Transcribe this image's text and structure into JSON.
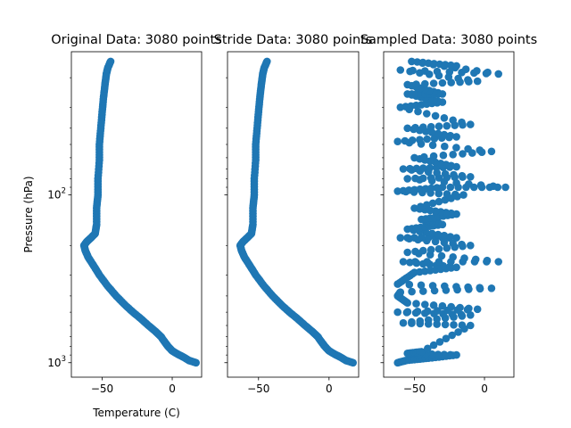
{
  "figure": {
    "marker_color": "#1f77b4",
    "shared_y": true,
    "ylabel": "Pressure (hPa)",
    "xlabel": "Temperature (C)"
  },
  "chart_data": [
    {
      "type": "scatter",
      "title": "Original Data: 3080 points",
      "xlabel": "Temperature (C)",
      "ylabel": "Pressure (hPa)",
      "xlim": [
        -72,
        21
      ],
      "ylim": [
        1220,
        14
      ],
      "yscale": "log",
      "x_ticks": [
        -50,
        0
      ],
      "y_ticks": [
        {
          "value": 100,
          "base": "10",
          "exp": "2"
        },
        {
          "value": 1000,
          "base": "10",
          "exp": "3"
        }
      ],
      "grid": false,
      "legend": "none",
      "series": [
        {
          "points": [
            [
              17,
              1000
            ],
            [
              12,
              970
            ],
            [
              8,
              925
            ],
            [
              4,
              890
            ],
            [
              0,
              850
            ],
            [
              -3,
              800
            ],
            [
              -5,
              760
            ],
            [
              -8,
              700
            ],
            [
              -12,
              650
            ],
            [
              -17,
              600
            ],
            [
              -22,
              550
            ],
            [
              -28,
              500
            ],
            [
              -34,
              450
            ],
            [
              -40,
              400
            ],
            [
              -46,
              350
            ],
            [
              -52,
              300
            ],
            [
              -56,
              265
            ],
            [
              -60,
              235
            ],
            [
              -62,
              215
            ],
            [
              -63,
              200
            ],
            [
              -61,
              190
            ],
            [
              -58,
              180
            ],
            [
              -55,
              170
            ],
            [
              -54,
              150
            ],
            [
              -54,
              120
            ],
            [
              -53,
              100
            ],
            [
              -53,
              80
            ],
            [
              -52,
              62
            ],
            [
              -52,
              50
            ],
            [
              -51,
              40
            ],
            [
              -50,
              32
            ],
            [
              -49,
              26
            ],
            [
              -48,
              22
            ],
            [
              -47,
              19
            ],
            [
              -46,
              17.5
            ],
            [
              -44,
              16
            ]
          ]
        }
      ]
    },
    {
      "type": "scatter",
      "title": "Stride Data: 3080 points",
      "xlim": [
        -72,
        21
      ],
      "ylim": [
        1220,
        14
      ],
      "yscale": "log",
      "x_ticks": [
        -50,
        0
      ],
      "grid": false,
      "legend": "none",
      "series": [
        {
          "points": [
            [
              17,
              1000
            ],
            [
              12,
              970
            ],
            [
              8,
              925
            ],
            [
              4,
              890
            ],
            [
              0,
              850
            ],
            [
              -3,
              800
            ],
            [
              -5,
              760
            ],
            [
              -8,
              700
            ],
            [
              -12,
              650
            ],
            [
              -17,
              600
            ],
            [
              -22,
              550
            ],
            [
              -28,
              500
            ],
            [
              -34,
              450
            ],
            [
              -40,
              400
            ],
            [
              -46,
              350
            ],
            [
              -52,
              300
            ],
            [
              -56,
              265
            ],
            [
              -60,
              235
            ],
            [
              -62,
              215
            ],
            [
              -63,
              200
            ],
            [
              -61,
              190
            ],
            [
              -58,
              180
            ],
            [
              -55,
              170
            ],
            [
              -54,
              150
            ],
            [
              -54,
              120
            ],
            [
              -53,
              100
            ],
            [
              -53,
              80
            ],
            [
              -52,
              62
            ],
            [
              -52,
              50
            ],
            [
              -51,
              40
            ],
            [
              -50,
              32
            ],
            [
              -49,
              26
            ],
            [
              -48,
              22
            ],
            [
              -47,
              19
            ],
            [
              -46,
              17.5
            ],
            [
              -44,
              16
            ]
          ]
        }
      ]
    },
    {
      "type": "scatter",
      "title": "Sampled Data: 3080 points",
      "xlim": [
        -72,
        21
      ],
      "ylim": [
        1220,
        14
      ],
      "yscale": "log",
      "x_ticks": [
        -50,
        0
      ],
      "grid": false,
      "legend": "none",
      "series": [
        {
          "points": [
            [
              -62,
              1000
            ],
            [
              -56,
              970
            ],
            [
              -40,
              940
            ],
            [
              -20,
              900
            ],
            [
              -55,
              880
            ],
            [
              -45,
              860
            ],
            [
              -10,
              600
            ],
            [
              -58,
              580
            ],
            [
              -10,
              520
            ],
            [
              -62,
              500
            ],
            [
              -5,
              480
            ],
            [
              -55,
              440
            ],
            [
              -62,
              400
            ],
            [
              -60,
              380
            ],
            [
              5,
              360
            ],
            [
              -62,
              340
            ],
            [
              -50,
              290
            ],
            [
              -20,
              270
            ],
            [
              -58,
              250
            ],
            [
              10,
              250
            ],
            [
              -55,
              220
            ],
            [
              -10,
              200
            ],
            [
              -60,
              180
            ],
            [
              -20,
              180
            ],
            [
              -55,
              160
            ],
            [
              -30,
              150
            ],
            [
              -45,
              140
            ],
            [
              -20,
              130
            ],
            [
              -50,
              120
            ],
            [
              -15,
              100
            ],
            [
              -62,
              95
            ],
            [
              -30,
              90
            ],
            [
              15,
              90
            ],
            [
              -55,
              80
            ],
            [
              -10,
              78
            ],
            [
              -58,
              70
            ],
            [
              -20,
              68
            ],
            [
              -50,
              60
            ],
            [
              5,
              55
            ],
            [
              -62,
              48
            ],
            [
              -20,
              45
            ],
            [
              -55,
              40
            ],
            [
              -10,
              38
            ],
            [
              -60,
              30
            ],
            [
              -30,
              28
            ],
            [
              -55,
              25
            ],
            [
              -30,
              25
            ],
            [
              -55,
              22
            ],
            [
              -5,
              21
            ],
            [
              -60,
              18
            ],
            [
              10,
              19
            ],
            [
              -52,
              16
            ],
            [
              -20,
              17
            ]
          ]
        }
      ]
    }
  ]
}
